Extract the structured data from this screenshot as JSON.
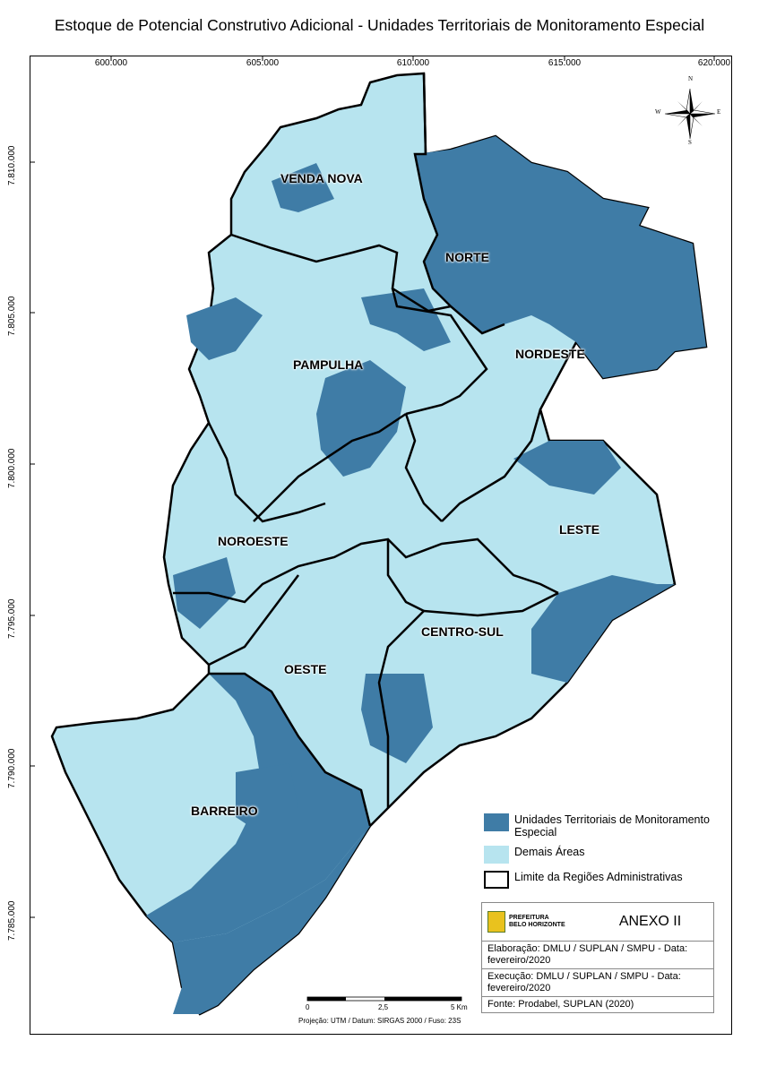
{
  "title": "Estoque de Potencial Construtivo Adicional - Unidades Territoriais de Monitoramento Especial",
  "x_ticks": [
    "600.000",
    "605.000",
    "610.000",
    "615.000",
    "620.000"
  ],
  "y_ticks": [
    "7.810.000",
    "7.805.000",
    "7.800.000",
    "7.795.000",
    "7.790.000",
    "7.785.000"
  ],
  "regions": [
    "VENDA NOVA",
    "NORTE",
    "PAMPULHA",
    "NORDESTE",
    "NOROESTE",
    "LESTE",
    "CENTRO-SUL",
    "OESTE",
    "BARREIRO"
  ],
  "colors": {
    "special": "#3f7ca6",
    "other": "#b7e4ef",
    "boundary": "#000000"
  },
  "legend": {
    "special": "Unidades Territoriais de Monitoramento Especial",
    "other": "Demais Áreas",
    "boundary": "Limite da Regiões Administrativas"
  },
  "info": {
    "logo_line1": "PREFEITURA",
    "logo_line2": "BELO HORIZONTE",
    "anexo": "ANEXO II",
    "elaboracao": "Elaboração: DMLU / SUPLAN / SMPU - Data: fevereiro/2020",
    "execucao": "Execução: DMLU / SUPLAN / SMPU - Data: fevereiro/2020",
    "fonte": "Fonte: Prodabel, SUPLAN (2020)"
  },
  "scale": {
    "s0": "0",
    "s1": "2,5",
    "s2": "5 Km"
  },
  "projection": "Projeção: UTM / Datum: SIRGAS 2000 / Fuso: 23S",
  "compass": {
    "n": "N",
    "s": "S",
    "e": "E",
    "w": "W"
  }
}
